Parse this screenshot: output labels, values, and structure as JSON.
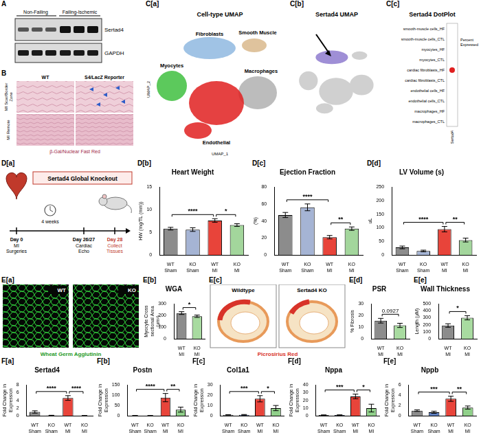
{
  "panels": {
    "A": {
      "letter": "A",
      "groups": [
        "Non-Failing",
        "Failing-Ischemic"
      ],
      "bands": [
        "Sertad4",
        "GAPDH"
      ]
    },
    "B": {
      "letter": "B",
      "columns": [
        "WT",
        "S4/LacZ Reporter"
      ],
      "rows": [
        "MI Scar/Border Zone",
        "MI Remote"
      ],
      "caption": "β-Gal/Nuclear Fast Red"
    },
    "Ca": {
      "letter": "C[a]",
      "title": "Cell-type UMAP",
      "clusters": [
        "Fibroblasts",
        "Smooth Muscle",
        "Myocytes",
        "Macrophages",
        "Endothelial"
      ],
      "x_label": "UMAP_1",
      "y_label": "UMAP_2"
    },
    "Cb": {
      "letter": "C[b]",
      "title": "Sertad4 UMAP"
    },
    "Cc": {
      "letter": "C[c]",
      "title": "Sertad4 DotPlot",
      "rows": [
        "smooth-muscle cells_HF",
        "smooth-muscle cells_CTL",
        "myocytes_HF",
        "myocytes_CTL",
        "cardiac fibroblasts_HF",
        "cardiac fibroblasts_CTL",
        "endothelial cells_HF",
        "endothelial cells_CTL",
        "macrophages_HF",
        "macrophages_CTL"
      ],
      "x_label": "Sertad4",
      "legend_title": "Percent Expressed",
      "expressed_in": "cardiac fibroblasts_HF"
    },
    "Da": {
      "letter": "D[a]",
      "title": "Sertad4 Global Knockout",
      "interval": "4 weeks",
      "timeline": [
        {
          "day": "Day 0",
          "event": "MI Surgeries"
        },
        {
          "day": "Day 26/27",
          "event": "Cardiac Echo"
        },
        {
          "day": "Day 28",
          "event": "Collect Tissues"
        }
      ]
    },
    "Ea": {
      "letter": "E[a]",
      "images": [
        "WT",
        "KO"
      ],
      "caption": "Wheat Germ Agglutinin"
    },
    "Ec": {
      "letter": "E[c]",
      "images": [
        "Wildtype",
        "Sertad4 KO"
      ],
      "caption": "Picrosirius Red"
    }
  },
  "chart_data": [
    {
      "panel": "D[b]",
      "type": "bar",
      "title": "Heart Weight",
      "y_label": "HW (mg/TL (mm))",
      "categories": [
        "WT Sham",
        "KO Sham",
        "WT MI",
        "KO MI"
      ],
      "values": [
        5.8,
        5.6,
        7.6,
        6.6
      ],
      "errors": [
        0.3,
        0.4,
        0.4,
        0.3
      ],
      "colors": [
        "#8c8c8c",
        "#a5b4d4",
        "#e8443a",
        "#a3d69c"
      ],
      "ylim": [
        0,
        15
      ],
      "yticks": [
        0,
        5,
        10,
        15
      ],
      "annotations": [
        {
          "groups": [
            0,
            2
          ],
          "label": "****"
        },
        {
          "groups": [
            2,
            3
          ],
          "label": "*"
        }
      ]
    },
    {
      "panel": "D[c]",
      "type": "bar",
      "title": "Ejection Fraction",
      "y_label": "(%)",
      "categories": [
        "WT Sham",
        "KO Sham",
        "WT MI",
        "KO MI"
      ],
      "values": [
        47,
        56,
        21,
        31
      ],
      "errors": [
        3,
        4,
        2,
        2
      ],
      "colors": [
        "#8c8c8c",
        "#a5b4d4",
        "#e8443a",
        "#a3d69c"
      ],
      "ylim": [
        0,
        80
      ],
      "yticks": [
        0,
        20,
        40,
        60,
        80
      ],
      "annotations": [
        {
          "groups": [
            0,
            2
          ],
          "label": "****"
        },
        {
          "groups": [
            2,
            3
          ],
          "label": "**"
        }
      ]
    },
    {
      "panel": "D[d]",
      "type": "bar",
      "title": "LV Volume (s)",
      "y_label": "uL",
      "categories": [
        "WT Sham",
        "KO Sham",
        "WT MI",
        "KO MI"
      ],
      "values": [
        28,
        15,
        95,
        55
      ],
      "errors": [
        5,
        3,
        10,
        7
      ],
      "colors": [
        "#8c8c8c",
        "#a5b4d4",
        "#e8443a",
        "#a3d69c"
      ],
      "ylim": [
        0,
        250
      ],
      "yticks": [
        0,
        50,
        100,
        150,
        200,
        250
      ],
      "annotations": [
        {
          "groups": [
            0,
            2
          ],
          "label": "****"
        },
        {
          "groups": [
            2,
            3
          ],
          "label": "**"
        }
      ]
    },
    {
      "panel": "E[b]",
      "type": "bar",
      "title": "WGA",
      "y_label": "Myocyte Cross sectional Area (μm²)",
      "categories": [
        "WT MI",
        "KO MI"
      ],
      "values": [
        220,
        193
      ],
      "errors": [
        12,
        10
      ],
      "colors": [
        "#8c8c8c",
        "#a8dba0"
      ],
      "ylim": [
        0,
        300
      ],
      "yticks": [
        0,
        100,
        200,
        300
      ],
      "annotations": [
        {
          "groups": [
            0,
            1
          ],
          "label": "*"
        }
      ]
    },
    {
      "panel": "E[d]",
      "type": "bar",
      "title": "PSR",
      "y_label": "% Fibrosis",
      "categories": [
        "WT MI",
        "KO MI"
      ],
      "values": [
        15.5,
        11.5
      ],
      "errors": [
        2,
        1.8
      ],
      "colors": [
        "#8c8c8c",
        "#a8dba0"
      ],
      "ylim": [
        0,
        30
      ],
      "yticks": [
        0,
        10,
        20,
        30
      ],
      "annotations": [
        {
          "groups": [
            0,
            1
          ],
          "label": "0.0927"
        }
      ]
    },
    {
      "panel": "E[e]",
      "type": "bar",
      "title": "Wall Thickness",
      "y_label": "Length (μM)",
      "categories": [
        "WT MI",
        "KO MI"
      ],
      "values": [
        190,
        300
      ],
      "errors": [
        25,
        30
      ],
      "colors": [
        "#8c8c8c",
        "#a8dba0"
      ],
      "ylim": [
        0,
        500
      ],
      "yticks": [
        0,
        100,
        200,
        300,
        400,
        500
      ],
      "annotations": [
        {
          "groups": [
            0,
            1
          ],
          "label": "*"
        }
      ]
    },
    {
      "panel": "F[a]",
      "type": "bar",
      "title": "Sertad4",
      "y_label": "Fold Change in Expression",
      "categories": [
        "WT Sham",
        "KO Sham",
        "WT MI",
        "KO MI"
      ],
      "values": [
        1.0,
        0.1,
        4.6,
        0.05
      ],
      "errors": [
        0.3,
        0.05,
        0.6,
        0.02
      ],
      "colors": [
        "#8c8c8c",
        "#5f7fc0",
        "#e8443a",
        "#90d08a"
      ],
      "ylim": [
        0,
        8
      ],
      "yticks": [
        0,
        2,
        4,
        6,
        8
      ],
      "annotations": [
        {
          "groups": [
            0,
            2
          ],
          "label": "****"
        },
        {
          "groups": [
            2,
            3
          ],
          "label": "****"
        }
      ]
    },
    {
      "panel": "F[b]",
      "type": "bar",
      "title": "Postn",
      "y_label": "Fold Change in Expression",
      "categories": [
        "WT Sham",
        "KO Sham",
        "WT MI",
        "KO MI"
      ],
      "values": [
        1,
        1,
        88,
        30
      ],
      "errors": [
        0.3,
        0.3,
        20,
        12
      ],
      "colors": [
        "#8c8c8c",
        "#5f7fc0",
        "#e8443a",
        "#90d08a"
      ],
      "ylim": [
        0,
        150
      ],
      "yticks": [
        0,
        50,
        100,
        150
      ],
      "annotations": [
        {
          "groups": [
            0,
            2
          ],
          "label": "****"
        },
        {
          "groups": [
            2,
            3
          ],
          "label": "**"
        }
      ]
    },
    {
      "panel": "F[c]",
      "type": "bar",
      "title": "Col1a1",
      "y_label": "Fold Change in Expression",
      "categories": [
        "WT Sham",
        "KO Sham",
        "WT MI",
        "KO MI"
      ],
      "values": [
        1,
        1,
        16.5,
        7.5
      ],
      "errors": [
        0.2,
        0.3,
        3,
        2.5
      ],
      "colors": [
        "#8c8c8c",
        "#5f7fc0",
        "#e8443a",
        "#90d08a"
      ],
      "ylim": [
        0,
        30
      ],
      "yticks": [
        0,
        10,
        20,
        30
      ],
      "annotations": [
        {
          "groups": [
            0,
            2
          ],
          "label": "***"
        },
        {
          "groups": [
            2,
            3
          ],
          "label": "*"
        }
      ]
    },
    {
      "panel": "F[d]",
      "type": "bar",
      "title": "Nppa",
      "y_label": "Fold Change in Expression",
      "categories": [
        "WT Sham",
        "KO Sham",
        "WT MI",
        "KO MI"
      ],
      "values": [
        1,
        1,
        25,
        10
      ],
      "errors": [
        0.2,
        0.3,
        3,
        5
      ],
      "colors": [
        "#8c8c8c",
        "#5f7fc0",
        "#e8443a",
        "#90d08a"
      ],
      "ylim": [
        0,
        40
      ],
      "yticks": [
        0,
        10,
        20,
        30,
        40
      ],
      "annotations": [
        {
          "groups": [
            0,
            2
          ],
          "label": "***"
        },
        {
          "groups": [
            2,
            3
          ],
          "label": "*"
        }
      ]
    },
    {
      "panel": "F[e]",
      "type": "bar",
      "title": "Nppb",
      "y_label": "Fold Change in Expression",
      "categories": [
        "WT Sham",
        "KO Sham",
        "WT MI",
        "KO MI"
      ],
      "values": [
        1,
        0.7,
        3.3,
        1.6
      ],
      "errors": [
        0.15,
        0.2,
        0.5,
        0.3
      ],
      "colors": [
        "#8c8c8c",
        "#5f7fc0",
        "#e8443a",
        "#90d08a"
      ],
      "ylim": [
        0,
        6
      ],
      "yticks": [
        0,
        2,
        4,
        6
      ],
      "annotations": [
        {
          "groups": [
            0,
            2
          ],
          "label": "***"
        },
        {
          "groups": [
            2,
            3
          ],
          "label": "**"
        }
      ]
    }
  ]
}
